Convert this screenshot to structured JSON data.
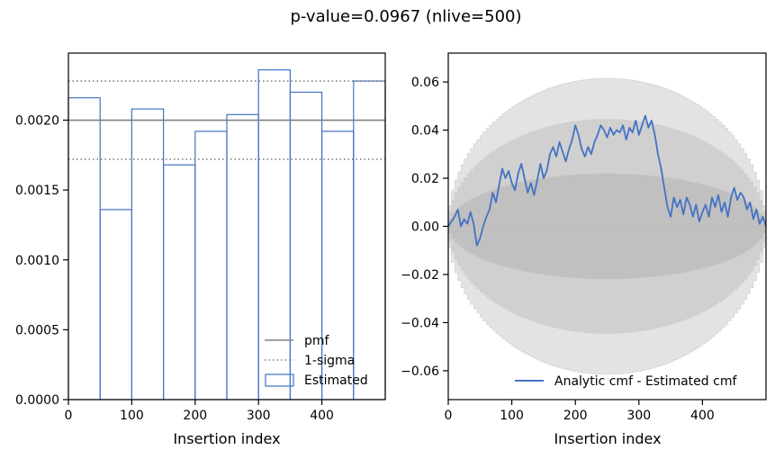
{
  "title": "p-value=0.0967 (nlive=500)",
  "colors": {
    "pmf": "#808080",
    "estimated": "#4472c4",
    "band_light": "#e3e3e3",
    "band_mid": "#d0d0d0",
    "band_dark": "#c0c0c0",
    "band_edge": "#cdcdcd"
  },
  "chart_data": [
    {
      "type": "bar",
      "xlabel": "Insertion index",
      "ylabel": "",
      "xlim": [
        0,
        500
      ],
      "ylim": [
        0,
        0.00248
      ],
      "xticks": [
        0,
        100,
        200,
        300,
        400
      ],
      "xtick_labels": [
        "0",
        "100",
        "200",
        "300",
        "400"
      ],
      "yticks": [
        0,
        0.0005,
        0.001,
        0.0015,
        0.002
      ],
      "ytick_labels": [
        "0.0000",
        "0.0005",
        "0.0010",
        "0.0015",
        "0.0020"
      ],
      "bin_edges": [
        0,
        50,
        100,
        150,
        200,
        250,
        300,
        350,
        400,
        450,
        500
      ],
      "values": [
        0.00216,
        0.00136,
        0.00208,
        0.00168,
        0.00192,
        0.00204,
        0.00236,
        0.0022,
        0.00192,
        0.00228
      ],
      "pmf": 0.002,
      "sigma_lower": 0.00172,
      "sigma_upper": 0.00228,
      "legend": [
        "pmf",
        "1-sigma",
        "Estimated"
      ],
      "legend_position": "lower-right"
    },
    {
      "type": "line",
      "xlabel": "Insertion index",
      "ylabel": "",
      "xlim": [
        0,
        500
      ],
      "ylim": [
        -0.072,
        0.072
      ],
      "xticks": [
        0,
        100,
        200,
        300,
        400
      ],
      "xtick_labels": [
        "0",
        "100",
        "200",
        "300",
        "400"
      ],
      "yticks": [
        -0.06,
        -0.04,
        -0.02,
        0.0,
        0.02,
        0.04,
        0.06
      ],
      "ytick_labels": [
        "−0.06",
        "−0.04",
        "−0.02",
        "0.00",
        "0.02",
        "0.04",
        "0.06"
      ],
      "bands": [
        {
          "name": "3-sigma",
          "amplitude": 0.0615
        },
        {
          "name": "2-sigma",
          "amplitude": 0.0445
        },
        {
          "name": "1-sigma",
          "amplitude": 0.022
        }
      ],
      "series": [
        {
          "name": "Analytic cmf - Estimated cmf",
          "x": [
            0,
            10,
            15,
            20,
            25,
            30,
            35,
            40,
            45,
            50,
            55,
            60,
            65,
            70,
            75,
            80,
            85,
            90,
            95,
            100,
            105,
            110,
            115,
            120,
            125,
            130,
            135,
            140,
            145,
            150,
            155,
            160,
            165,
            170,
            175,
            180,
            185,
            190,
            195,
            200,
            205,
            210,
            215,
            220,
            225,
            230,
            235,
            240,
            245,
            250,
            255,
            260,
            265,
            270,
            275,
            280,
            285,
            290,
            295,
            300,
            305,
            310,
            315,
            320,
            325,
            330,
            335,
            340,
            345,
            350,
            355,
            360,
            365,
            370,
            375,
            380,
            385,
            390,
            395,
            400,
            405,
            410,
            415,
            420,
            425,
            430,
            435,
            440,
            445,
            450,
            455,
            460,
            465,
            470,
            475,
            480,
            485,
            490,
            495,
            500
          ],
          "values": [
            0.0,
            0.004,
            0.007,
            0.0,
            0.003,
            0.001,
            0.006,
            0.001,
            -0.008,
            -0.005,
            0.0,
            0.004,
            0.007,
            0.014,
            0.01,
            0.017,
            0.024,
            0.02,
            0.023,
            0.018,
            0.015,
            0.022,
            0.026,
            0.02,
            0.014,
            0.018,
            0.013,
            0.019,
            0.026,
            0.02,
            0.023,
            0.03,
            0.033,
            0.029,
            0.035,
            0.031,
            0.027,
            0.032,
            0.036,
            0.042,
            0.038,
            0.032,
            0.029,
            0.033,
            0.03,
            0.035,
            0.038,
            0.042,
            0.04,
            0.037,
            0.041,
            0.038,
            0.04,
            0.039,
            0.042,
            0.036,
            0.041,
            0.039,
            0.044,
            0.038,
            0.042,
            0.046,
            0.041,
            0.044,
            0.038,
            0.03,
            0.024,
            0.016,
            0.008,
            0.004,
            0.012,
            0.008,
            0.011,
            0.005,
            0.012,
            0.009,
            0.004,
            0.009,
            0.002,
            0.006,
            0.009,
            0.004,
            0.012,
            0.008,
            0.013,
            0.006,
            0.01,
            0.004,
            0.012,
            0.016,
            0.011,
            0.014,
            0.012,
            0.007,
            0.01,
            0.003,
            0.007,
            0.001,
            0.004,
            0.0
          ]
        }
      ],
      "legend": [
        "Analytic cmf - Estimated cmf"
      ],
      "legend_position": "lower-right"
    }
  ]
}
